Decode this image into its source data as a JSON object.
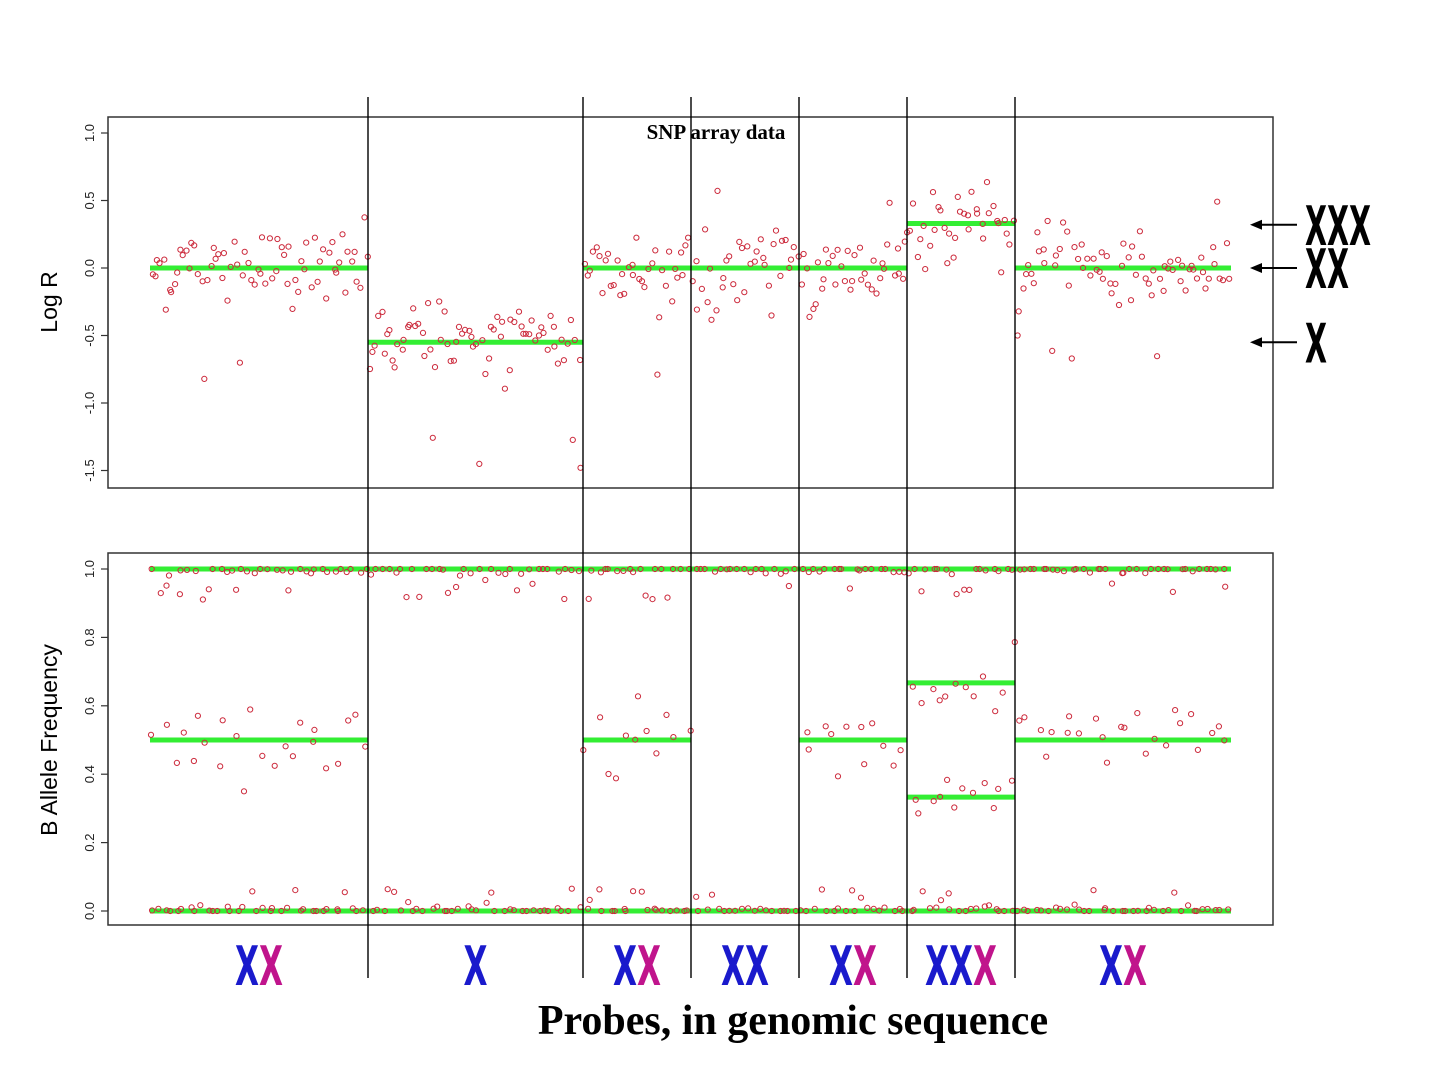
{
  "chart_data": [
    {
      "type": "scatter",
      "title": "SNP array data",
      "ylabel": "Log R",
      "xlabel": "",
      "ylim": [
        -1.5,
        1.0
      ],
      "yticks": [
        "-1.5",
        "-1.0",
        "-0.5",
        "0.0",
        "0.5",
        "1.0"
      ],
      "grid": false,
      "segments": [
        {
          "copy_number": "XX",
          "fit": 0.0,
          "probes": 74
        },
        {
          "copy_number": "X",
          "fit": -0.55,
          "probes": 74
        },
        {
          "copy_number": "XX",
          "fit": 0.0,
          "probes": 37
        },
        {
          "copy_number": "XX",
          "fit": 0.0,
          "probes": 37
        },
        {
          "copy_number": "XX",
          "fit": 0.0,
          "probes": 37
        },
        {
          "copy_number": "XXX",
          "fit": 0.33,
          "probes": 37
        },
        {
          "copy_number": "XX",
          "fit": 0.0,
          "probes": 74
        }
      ],
      "annotations": [
        {
          "label": "XXX",
          "y": 0.32
        },
        {
          "label": "XX",
          "y": 0.0
        },
        {
          "label": "X",
          "y": -0.55
        }
      ]
    },
    {
      "type": "scatter",
      "title": "",
      "ylabel": "B Allele Frequency",
      "xlabel": "Probes, in genomic sequence",
      "ylim": [
        0.0,
        1.0
      ],
      "yticks": [
        "0.0",
        "0.2",
        "0.4",
        "0.6",
        "0.8",
        "1.0"
      ],
      "grid": false,
      "segments": [
        {
          "copy_number": "XX",
          "bands": [
            0.0,
            0.5,
            1.0
          ]
        },
        {
          "copy_number": "X",
          "bands": [
            0.0,
            1.0
          ]
        },
        {
          "copy_number": "XX",
          "bands": [
            0.0,
            0.5,
            1.0
          ]
        },
        {
          "copy_number": "XX",
          "bands": [
            0.0,
            1.0
          ]
        },
        {
          "copy_number": "XX",
          "bands": [
            0.0,
            0.5,
            1.0
          ]
        },
        {
          "copy_number": "XXX",
          "bands": [
            0.0,
            0.333,
            0.667,
            1.0
          ]
        },
        {
          "copy_number": "XX",
          "bands": [
            0.0,
            0.5,
            1.0
          ]
        }
      ]
    }
  ],
  "segment_labels": [
    {
      "letters": [
        "X",
        "X"
      ],
      "colors": [
        "#1a1acc",
        "#c0148c"
      ]
    },
    {
      "letters": [
        "X"
      ],
      "colors": [
        "#1a1acc"
      ]
    },
    {
      "letters": [
        "X",
        "X"
      ],
      "colors": [
        "#1a1acc",
        "#c0148c"
      ]
    },
    {
      "letters": [
        "X",
        "X"
      ],
      "colors": [
        "#1a1acc",
        "#1a1acc"
      ]
    },
    {
      "letters": [
        "X",
        "X"
      ],
      "colors": [
        "#1a1acc",
        "#c0148c"
      ]
    },
    {
      "letters": [
        "X",
        "X",
        "X"
      ],
      "colors": [
        "#1a1acc",
        "#1a1acc",
        "#c0148c"
      ]
    },
    {
      "letters": [
        "X",
        "X"
      ],
      "colors": [
        "#1a1acc",
        "#c0148c"
      ]
    }
  ],
  "colors": {
    "points": "#cc2a3c",
    "fit_line": "#33ee33",
    "axis": "#333333"
  }
}
